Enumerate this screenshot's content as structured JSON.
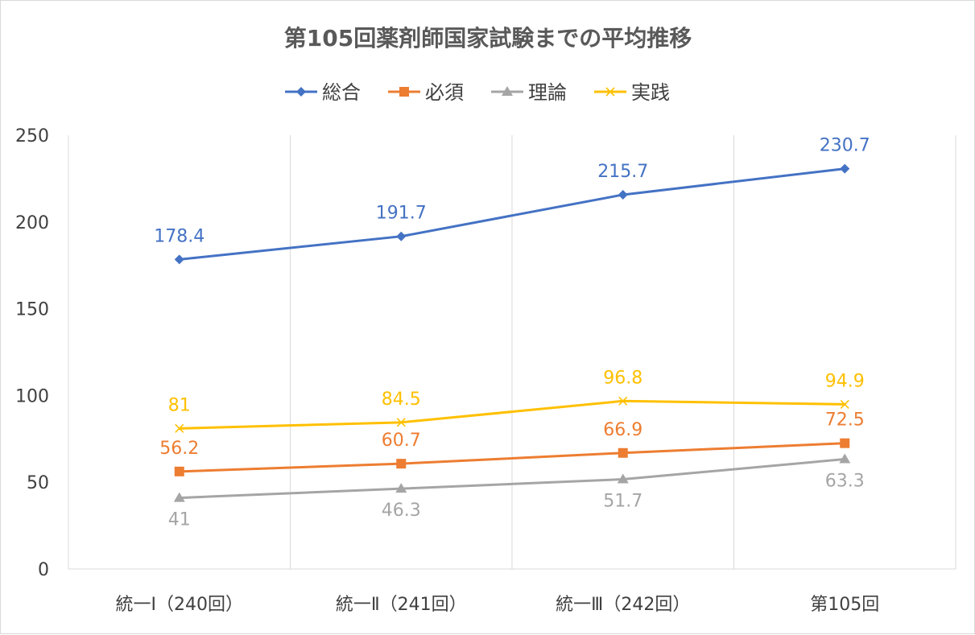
{
  "chart_data": {
    "type": "line",
    "title": "第105回薬剤師国家試験までの平均推移",
    "categories": [
      "統一Ⅰ（240回）",
      "統一Ⅱ（241回）",
      "統一Ⅲ（242回）",
      "第105回"
    ],
    "series": [
      {
        "name": "総合",
        "values": [
          178.4,
          191.7,
          215.7,
          230.7
        ],
        "labels": [
          "178.4",
          "191.7",
          "215.7",
          "230.7"
        ],
        "color": "#4472c4",
        "marker": "diamond",
        "label_pos": [
          "above",
          "above",
          "above",
          "above"
        ]
      },
      {
        "name": "必須",
        "values": [
          56.2,
          60.7,
          66.9,
          72.5
        ],
        "labels": [
          "56.2",
          "60.7",
          "66.9",
          "72.5"
        ],
        "color": "#ed7d31",
        "marker": "square",
        "label_pos": [
          "above",
          "above",
          "above",
          "above"
        ]
      },
      {
        "name": "理論",
        "values": [
          41,
          46.3,
          51.7,
          63.3
        ],
        "labels": [
          "41",
          "46.3",
          "51.7",
          "63.3"
        ],
        "color": "#a5a5a5",
        "marker": "triangle",
        "label_pos": [
          "below",
          "below",
          "below",
          "below"
        ]
      },
      {
        "name": "実践",
        "values": [
          81,
          84.5,
          96.8,
          94.9
        ],
        "labels": [
          "81",
          "84.5",
          "96.8",
          "94.9"
        ],
        "color": "#ffc000",
        "marker": "x",
        "label_pos": [
          "above",
          "above",
          "above",
          "above"
        ]
      }
    ],
    "ylim": [
      0,
      250
    ],
    "yticks": [
      0,
      50,
      100,
      150,
      200,
      250
    ],
    "ytick_labels": [
      "0",
      "50",
      "100",
      "150",
      "200",
      "250"
    ],
    "grid": "vertical",
    "legend_position": "top"
  }
}
